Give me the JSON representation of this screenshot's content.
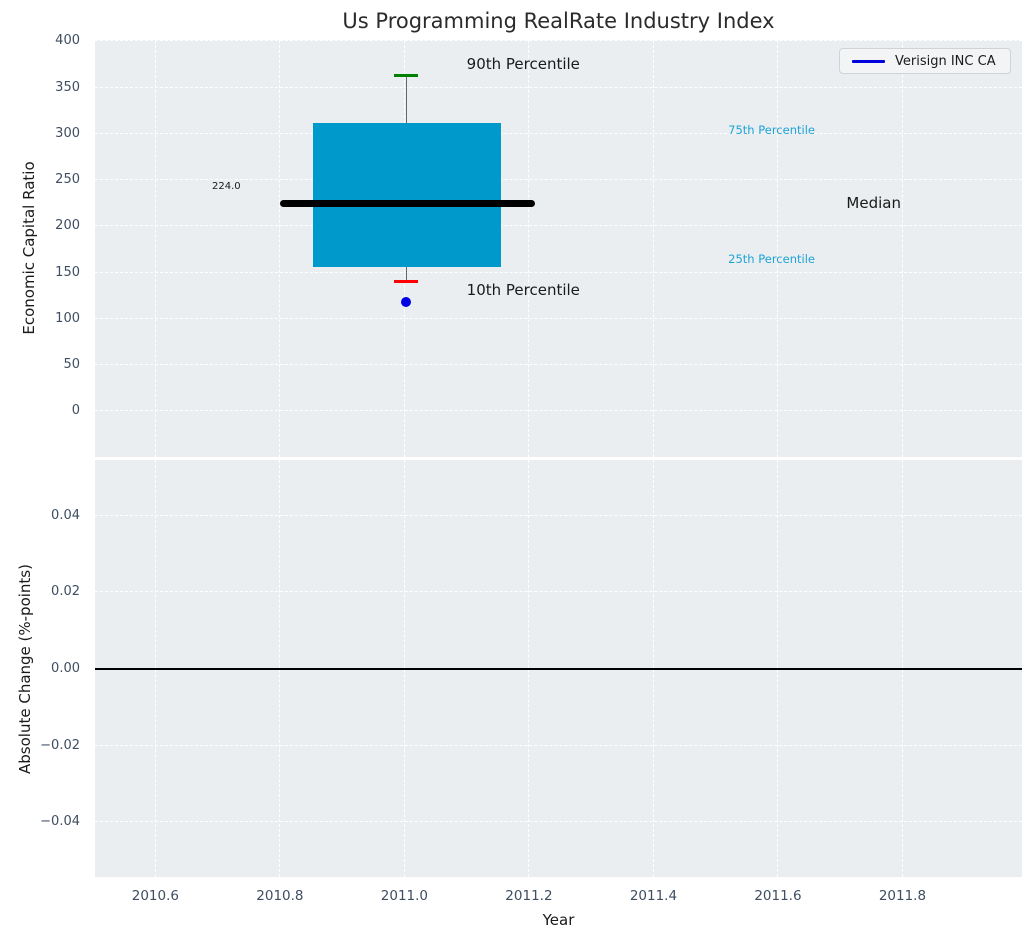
{
  "title": "Us Programming RealRate Industry Index",
  "legend": {
    "label": "Verisign INC CA",
    "line_color": "#0000dd"
  },
  "colors": {
    "axes_bg": "#eaeef0",
    "grid": "#ffffff",
    "tick_label": "#3f4e63",
    "text": "#1a1a1a",
    "box_fill": "#0099cc",
    "median": "#000000",
    "whisker": "#666666",
    "cap_top": "#008000",
    "cap_bottom": "#ff0000",
    "dot": "#0000e0",
    "annotation_cyan": "#1fa3d6",
    "zero_line": "#000000"
  },
  "chart_data": [
    {
      "type": "boxplot",
      "ylabel": "Economic Capital Ratio",
      "yticks": [
        400,
        350,
        300,
        250,
        200,
        150,
        100,
        50,
        0
      ],
      "ytick_labels": [
        "400",
        "350",
        "300",
        "250",
        "200",
        "150",
        "100",
        "50",
        "0"
      ],
      "ylim": [
        -50,
        401
      ],
      "xlim": [
        2010.503,
        2011.992
      ],
      "grid": true,
      "legend_position": "upper right",
      "box": {
        "x_center": 2011.003,
        "box_left": 2010.853,
        "box_right": 2011.155,
        "q25": 156,
        "q75": 311,
        "median": 224,
        "median_label": "224.0",
        "median_line_left": 2010.8,
        "median_line_right": 2011.21,
        "p90": 363,
        "p10": 140,
        "company_point": 118
      },
      "annotations": [
        {
          "text": "90th Percentile",
          "x": 2011.1,
          "y": 374,
          "color": "text",
          "size": 15,
          "align": "left"
        },
        {
          "text": "10th Percentile",
          "x": 2011.1,
          "y": 130,
          "color": "text",
          "size": 15,
          "align": "left"
        },
        {
          "text": "224.0",
          "x": 2010.737,
          "y": 242,
          "color": "text",
          "size": 10,
          "align": "right"
        },
        {
          "text": "75th Percentile",
          "x": 2011.52,
          "y": 303,
          "color": "annotation_cyan",
          "size": 11.5,
          "align": "left"
        },
        {
          "text": "25th Percentile",
          "x": 2011.52,
          "y": 163,
          "color": "annotation_cyan",
          "size": 11.5,
          "align": "left"
        },
        {
          "text": "Median",
          "x": 2011.71,
          "y": 224,
          "color": "text",
          "size": 15,
          "align": "left"
        }
      ]
    },
    {
      "type": "line",
      "ylabel": "Absolute Change (%-points)",
      "xlabel": "Year",
      "yticks": [
        0.04,
        0.02,
        0.0,
        -0.02,
        -0.04
      ],
      "ytick_labels": [
        "0.04",
        "0.02",
        "0.00",
        "−0.02",
        "−0.04"
      ],
      "ylim": [
        -0.0545,
        0.0545
      ],
      "xlim": [
        2010.503,
        2011.992
      ],
      "grid": true,
      "zero_line": 0.0,
      "xticks": [
        2010.6,
        2010.8,
        2011.0,
        2011.2,
        2011.4,
        2011.6,
        2011.8
      ],
      "xtick_labels": [
        "2010.6",
        "2010.8",
        "2011.0",
        "2011.2",
        "2011.4",
        "2011.6",
        "2011.8"
      ],
      "series": []
    }
  ]
}
